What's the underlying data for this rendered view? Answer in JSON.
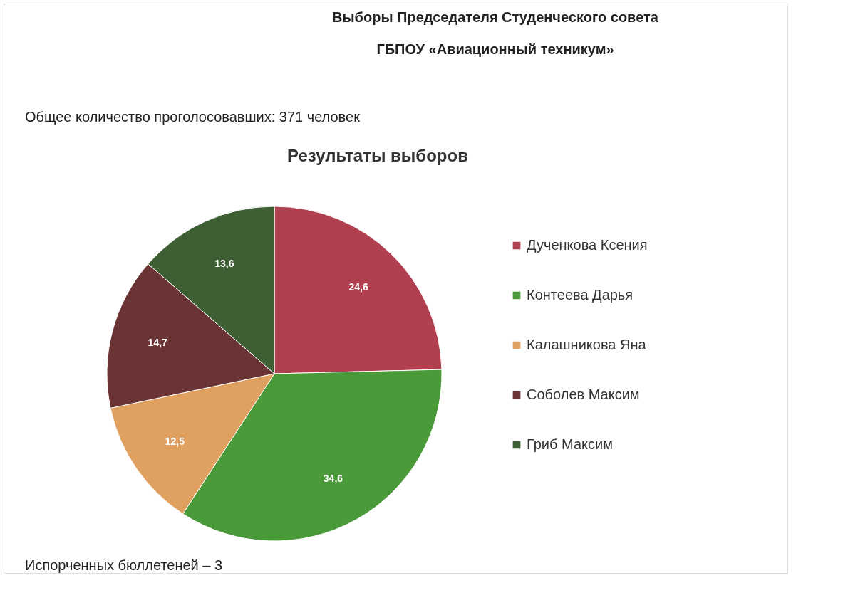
{
  "chart_data": {
    "type": "pie",
    "title": "Результаты выборов",
    "annotations": [
      "Выборы Председателя Студенческого совета",
      "ГБПОУ «Авиационный техникум»",
      "Общее количество проголосовавших: 371 человек",
      "Испорченных бюллетеней – 3"
    ],
    "categories": [
      "Дученкова Ксения",
      "Контеева Дарья",
      "Калашникова Яна",
      "Соболев Максим",
      "Гриб Максим"
    ],
    "values": [
      24.6,
      34.6,
      12.5,
      14.7,
      13.6
    ],
    "value_labels": [
      "24,6",
      "34,6",
      "12,5",
      "14,7",
      "13,6"
    ],
    "colors": [
      "#b0404f",
      "#4a9a3a",
      "#e0a060",
      "#6a3434",
      "#3e5e34"
    ],
    "legend": "right"
  }
}
